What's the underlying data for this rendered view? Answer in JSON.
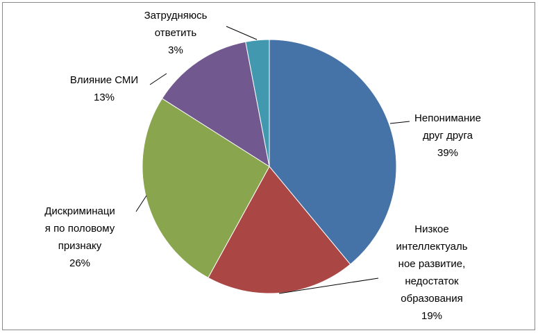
{
  "chart_data": {
    "type": "pie",
    "categories": [
      "Непонимание\nдруг друга",
      "Низкое\nинтеллектуаль\nное развитие,\nнедостаток\nобразования",
      "Дискриминаци\nя по половому\nпризнаку",
      "Влияние СМИ",
      "Затрудняюсь\nответить"
    ],
    "values": [
      39,
      19,
      26,
      13,
      3
    ],
    "value_labels": [
      "39%",
      "19%",
      "26%",
      "13%",
      "3%"
    ],
    "colors": [
      "#4572a7",
      "#aa4643",
      "#89a54e",
      "#71588f",
      "#4198af"
    ]
  }
}
